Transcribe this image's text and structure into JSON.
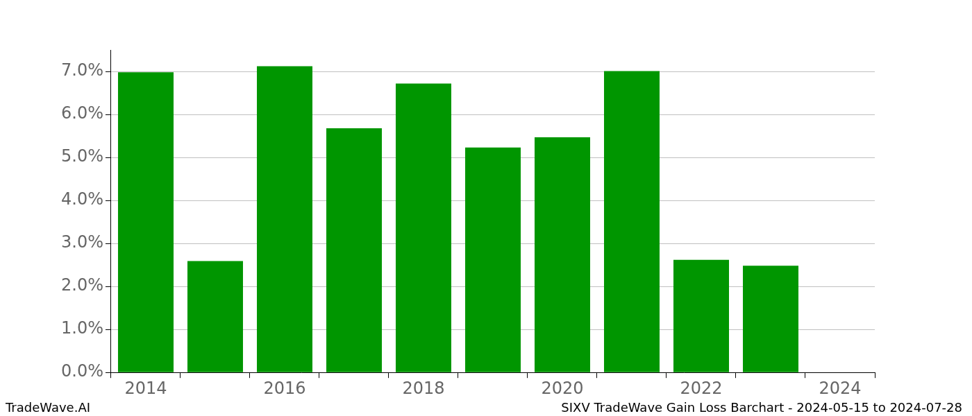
{
  "chart_data": {
    "type": "bar",
    "title": "SIXV TradeWave Gain Loss Barchart - 2024-05-15 to 2024-07-28",
    "annotations": [
      "TradeWave.AI"
    ],
    "categories": [
      "2014",
      null,
      "2016",
      null,
      "2018",
      null,
      "2020",
      null,
      "2022",
      null,
      "2024"
    ],
    "values": [
      6.98,
      2.59,
      7.12,
      5.68,
      6.72,
      5.23,
      5.47,
      7.01,
      2.62,
      2.48,
      null
    ],
    "color": "#009600",
    "ylim": [
      0,
      7.5
    ],
    "yticks": [
      {
        "value": 0,
        "label": "0.0%"
      },
      {
        "value": 1,
        "label": "1.0%"
      },
      {
        "value": 2,
        "label": "2.0%"
      },
      {
        "value": 3,
        "label": "3.0%"
      },
      {
        "value": 4,
        "label": "4.0%"
      },
      {
        "value": 5,
        "label": "5.0%"
      },
      {
        "value": 6,
        "label": "6.0%"
      },
      {
        "value": 7,
        "label": "7.0%"
      }
    ],
    "grid": true
  }
}
